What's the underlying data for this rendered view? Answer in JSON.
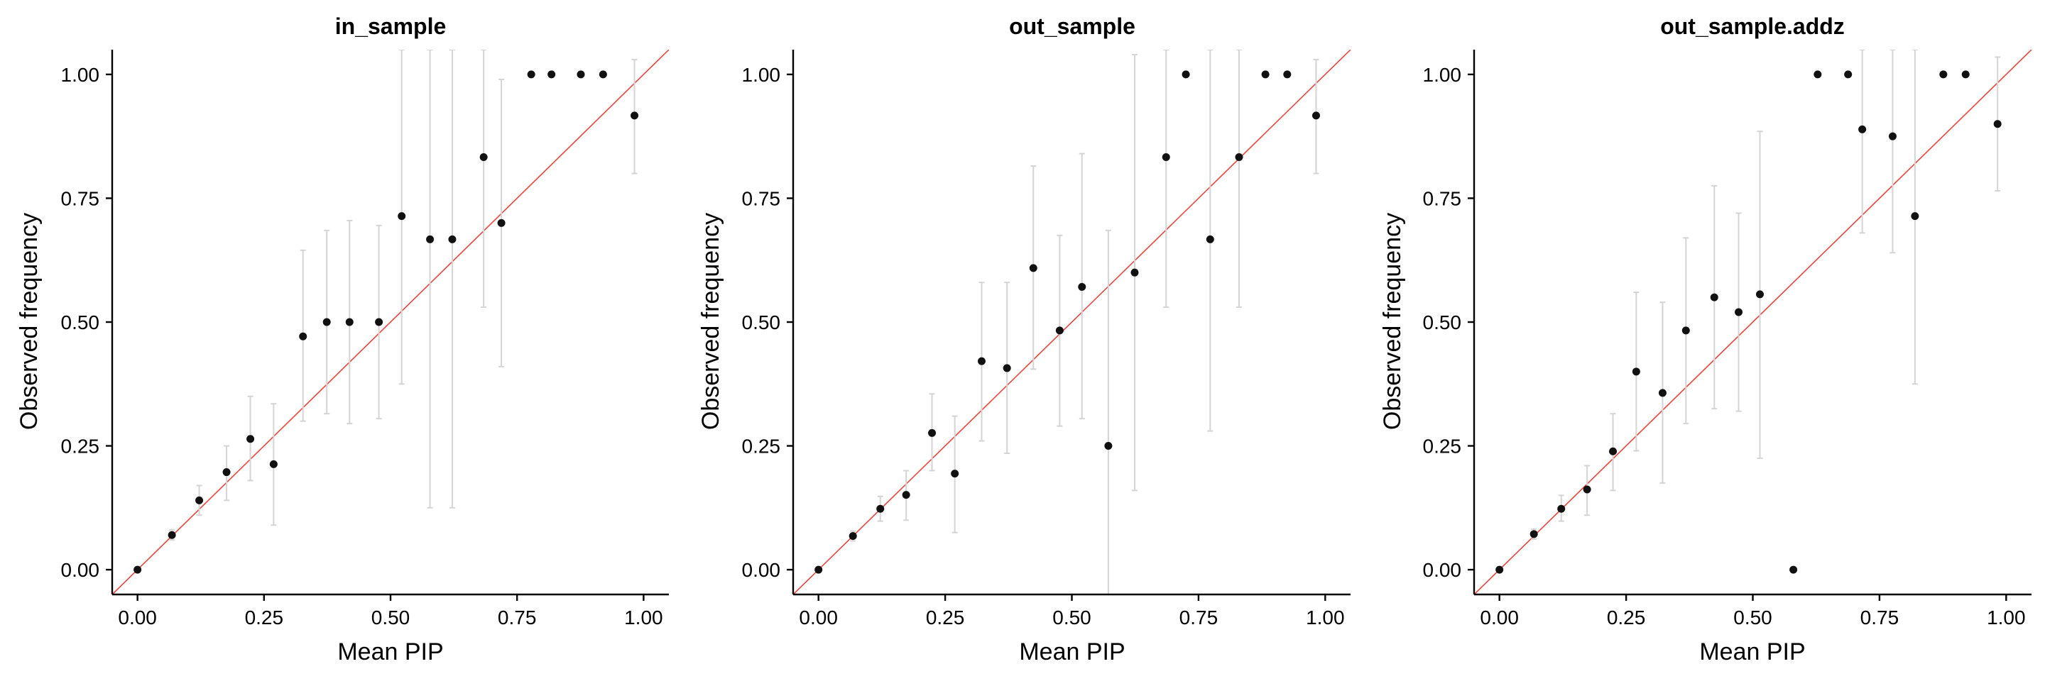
{
  "colors": {
    "reference_line": "#f0433a",
    "error_bar": "#d4d4d4",
    "point": "#111111",
    "axis": "#000000"
  },
  "chart_data": [
    {
      "type": "scatter",
      "title": "in_sample",
      "xlabel": "Mean PIP",
      "ylabel": "Observed frequency",
      "xlim": [
        -0.05,
        1.05
      ],
      "ylim": [
        -0.05,
        1.05
      ],
      "xticks": [
        0.0,
        0.25,
        0.5,
        0.75,
        1.0
      ],
      "xtick_labels": [
        "0.00",
        "0.25",
        "0.50",
        "0.75",
        "1.00"
      ],
      "yticks": [
        0.0,
        0.25,
        0.5,
        0.75,
        1.0
      ],
      "ytick_labels": [
        "0.00",
        "0.25",
        "0.50",
        "0.75",
        "1.00"
      ],
      "reference_line": "y = x",
      "points": [
        {
          "x": 0.0,
          "y": 0.0,
          "lo": 0.0,
          "hi": 0.0
        },
        {
          "x": 0.068,
          "y": 0.07,
          "lo": 0.06,
          "hi": 0.08
        },
        {
          "x": 0.122,
          "y": 0.14,
          "lo": 0.11,
          "hi": 0.17
        },
        {
          "x": 0.176,
          "y": 0.197,
          "lo": 0.14,
          "hi": 0.25
        },
        {
          "x": 0.223,
          "y": 0.264,
          "lo": 0.18,
          "hi": 0.35
        },
        {
          "x": 0.269,
          "y": 0.213,
          "lo": 0.09,
          "hi": 0.335
        },
        {
          "x": 0.327,
          "y": 0.471,
          "lo": 0.3,
          "hi": 0.645
        },
        {
          "x": 0.374,
          "y": 0.5,
          "lo": 0.315,
          "hi": 0.685
        },
        {
          "x": 0.419,
          "y": 0.5,
          "lo": 0.295,
          "hi": 0.705
        },
        {
          "x": 0.477,
          "y": 0.5,
          "lo": 0.305,
          "hi": 0.695
        },
        {
          "x": 0.522,
          "y": 0.714,
          "lo": 0.375,
          "hi": 1.05
        },
        {
          "x": 0.578,
          "y": 0.667,
          "lo": 0.125,
          "hi": 1.05
        },
        {
          "x": 0.622,
          "y": 0.667,
          "lo": 0.125,
          "hi": 1.05
        },
        {
          "x": 0.684,
          "y": 0.833,
          "lo": 0.53,
          "hi": 1.05
        },
        {
          "x": 0.719,
          "y": 0.7,
          "lo": 0.41,
          "hi": 0.99
        },
        {
          "x": 0.778,
          "y": 1.0,
          "lo": 1.0,
          "hi": 1.0
        },
        {
          "x": 0.818,
          "y": 1.0,
          "lo": 1.0,
          "hi": 1.0
        },
        {
          "x": 0.876,
          "y": 1.0,
          "lo": 1.0,
          "hi": 1.0
        },
        {
          "x": 0.92,
          "y": 1.0,
          "lo": 1.0,
          "hi": 1.0
        },
        {
          "x": 0.982,
          "y": 0.917,
          "lo": 0.8,
          "hi": 1.03
        }
      ]
    },
    {
      "type": "scatter",
      "title": "out_sample",
      "xlabel": "Mean PIP",
      "ylabel": "Observed frequency",
      "xlim": [
        -0.05,
        1.05
      ],
      "ylim": [
        -0.05,
        1.05
      ],
      "xticks": [
        0.0,
        0.25,
        0.5,
        0.75,
        1.0
      ],
      "xtick_labels": [
        "0.00",
        "0.25",
        "0.50",
        "0.75",
        "1.00"
      ],
      "yticks": [
        0.0,
        0.25,
        0.5,
        0.75,
        1.0
      ],
      "ytick_labels": [
        "0.00",
        "0.25",
        "0.50",
        "0.75",
        "1.00"
      ],
      "reference_line": "y = x",
      "points": [
        {
          "x": 0.0,
          "y": 0.0,
          "lo": 0.0,
          "hi": 0.0
        },
        {
          "x": 0.068,
          "y": 0.068,
          "lo": 0.058,
          "hi": 0.078
        },
        {
          "x": 0.122,
          "y": 0.123,
          "lo": 0.098,
          "hi": 0.148
        },
        {
          "x": 0.173,
          "y": 0.151,
          "lo": 0.1,
          "hi": 0.2
        },
        {
          "x": 0.224,
          "y": 0.276,
          "lo": 0.2,
          "hi": 0.355
        },
        {
          "x": 0.269,
          "y": 0.194,
          "lo": 0.075,
          "hi": 0.31
        },
        {
          "x": 0.322,
          "y": 0.421,
          "lo": 0.26,
          "hi": 0.58
        },
        {
          "x": 0.372,
          "y": 0.407,
          "lo": 0.235,
          "hi": 0.58
        },
        {
          "x": 0.424,
          "y": 0.609,
          "lo": 0.405,
          "hi": 0.815
        },
        {
          "x": 0.476,
          "y": 0.483,
          "lo": 0.29,
          "hi": 0.675
        },
        {
          "x": 0.52,
          "y": 0.571,
          "lo": 0.305,
          "hi": 0.84
        },
        {
          "x": 0.572,
          "y": 0.25,
          "lo": -0.05,
          "hi": 0.685
        },
        {
          "x": 0.624,
          "y": 0.6,
          "lo": 0.16,
          "hi": 1.04
        },
        {
          "x": 0.686,
          "y": 0.833,
          "lo": 0.53,
          "hi": 1.05
        },
        {
          "x": 0.725,
          "y": 1.0,
          "lo": 1.0,
          "hi": 1.0
        },
        {
          "x": 0.773,
          "y": 0.667,
          "lo": 0.28,
          "hi": 1.05
        },
        {
          "x": 0.83,
          "y": 0.833,
          "lo": 0.53,
          "hi": 1.05
        },
        {
          "x": 0.882,
          "y": 1.0,
          "lo": 1.0,
          "hi": 1.0
        },
        {
          "x": 0.925,
          "y": 1.0,
          "lo": 1.0,
          "hi": 1.0
        },
        {
          "x": 0.982,
          "y": 0.917,
          "lo": 0.8,
          "hi": 1.03
        }
      ]
    },
    {
      "type": "scatter",
      "title": "out_sample.addz",
      "xlabel": "Mean PIP",
      "ylabel": "Observed frequency",
      "xlim": [
        -0.05,
        1.05
      ],
      "ylim": [
        -0.05,
        1.05
      ],
      "xticks": [
        0.0,
        0.25,
        0.5,
        0.75,
        1.0
      ],
      "xtick_labels": [
        "0.00",
        "0.25",
        "0.50",
        "0.75",
        "1.00"
      ],
      "yticks": [
        0.0,
        0.25,
        0.5,
        0.75,
        1.0
      ],
      "ytick_labels": [
        "0.00",
        "0.25",
        "0.50",
        "0.75",
        "1.00"
      ],
      "reference_line": "y = x",
      "points": [
        {
          "x": 0.0,
          "y": 0.0,
          "lo": 0.0,
          "hi": 0.0
        },
        {
          "x": 0.068,
          "y": 0.072,
          "lo": 0.062,
          "hi": 0.082
        },
        {
          "x": 0.122,
          "y": 0.123,
          "lo": 0.098,
          "hi": 0.15
        },
        {
          "x": 0.173,
          "y": 0.162,
          "lo": 0.11,
          "hi": 0.21
        },
        {
          "x": 0.224,
          "y": 0.239,
          "lo": 0.16,
          "hi": 0.315
        },
        {
          "x": 0.27,
          "y": 0.4,
          "lo": 0.24,
          "hi": 0.56
        },
        {
          "x": 0.322,
          "y": 0.357,
          "lo": 0.175,
          "hi": 0.54
        },
        {
          "x": 0.368,
          "y": 0.483,
          "lo": 0.295,
          "hi": 0.67
        },
        {
          "x": 0.424,
          "y": 0.55,
          "lo": 0.325,
          "hi": 0.775
        },
        {
          "x": 0.472,
          "y": 0.52,
          "lo": 0.32,
          "hi": 0.72
        },
        {
          "x": 0.514,
          "y": 0.556,
          "lo": 0.225,
          "hi": 0.885
        },
        {
          "x": 0.58,
          "y": 0.0,
          "lo": 0.0,
          "hi": 0.0
        },
        {
          "x": 0.628,
          "y": 1.0,
          "lo": 1.0,
          "hi": 1.0
        },
        {
          "x": 0.688,
          "y": 1.0,
          "lo": 1.0,
          "hi": 1.0
        },
        {
          "x": 0.716,
          "y": 0.889,
          "lo": 0.68,
          "hi": 1.05
        },
        {
          "x": 0.776,
          "y": 0.875,
          "lo": 0.64,
          "hi": 1.05
        },
        {
          "x": 0.82,
          "y": 0.714,
          "lo": 0.375,
          "hi": 1.05
        },
        {
          "x": 0.876,
          "y": 1.0,
          "lo": 1.0,
          "hi": 1.0
        },
        {
          "x": 0.92,
          "y": 1.0,
          "lo": 1.0,
          "hi": 1.0
        },
        {
          "x": 0.983,
          "y": 0.9,
          "lo": 0.765,
          "hi": 1.035
        }
      ]
    }
  ]
}
